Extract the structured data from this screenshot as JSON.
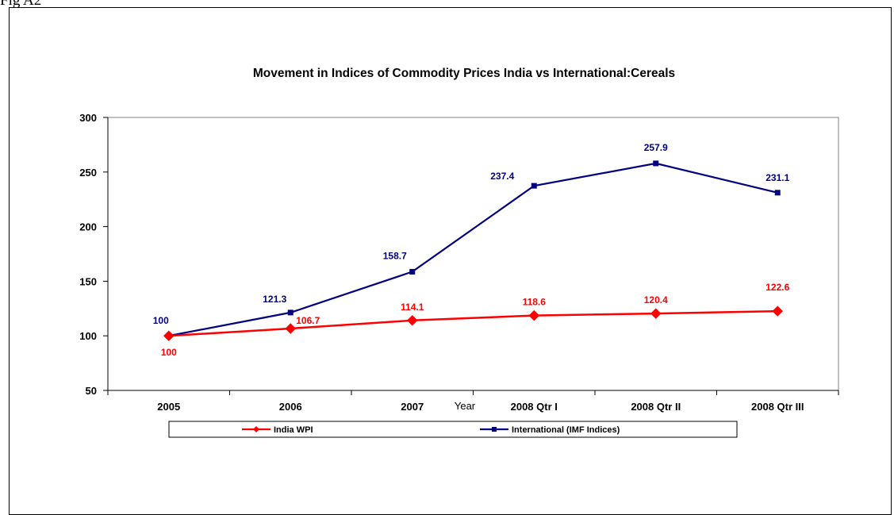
{
  "figure_label": "Fig A2",
  "chart_data": {
    "type": "line",
    "title": "Movement in Indices of Commodity Prices India vs International:Cereals",
    "xlabel": "Year",
    "ylabel": "",
    "categories": [
      "2005",
      "2006",
      "2007",
      "2008 Qtr I",
      "2008 Qtr II",
      "2008 Qtr III"
    ],
    "ylim": [
      50,
      300
    ],
    "yticks": [
      50,
      100,
      150,
      200,
      250,
      300
    ],
    "grid": false,
    "legend_position": "bottom",
    "series": [
      {
        "name": "India WPI",
        "color": "#ff0000",
        "marker": "diamond",
        "values": [
          100,
          106.7,
          114.1,
          118.6,
          120.4,
          122.6
        ]
      },
      {
        "name": "International (IMF Indices)",
        "color": "#000080",
        "marker": "square",
        "values": [
          100,
          121.3,
          158.7,
          237.4,
          257.9,
          231.1
        ]
      }
    ]
  }
}
